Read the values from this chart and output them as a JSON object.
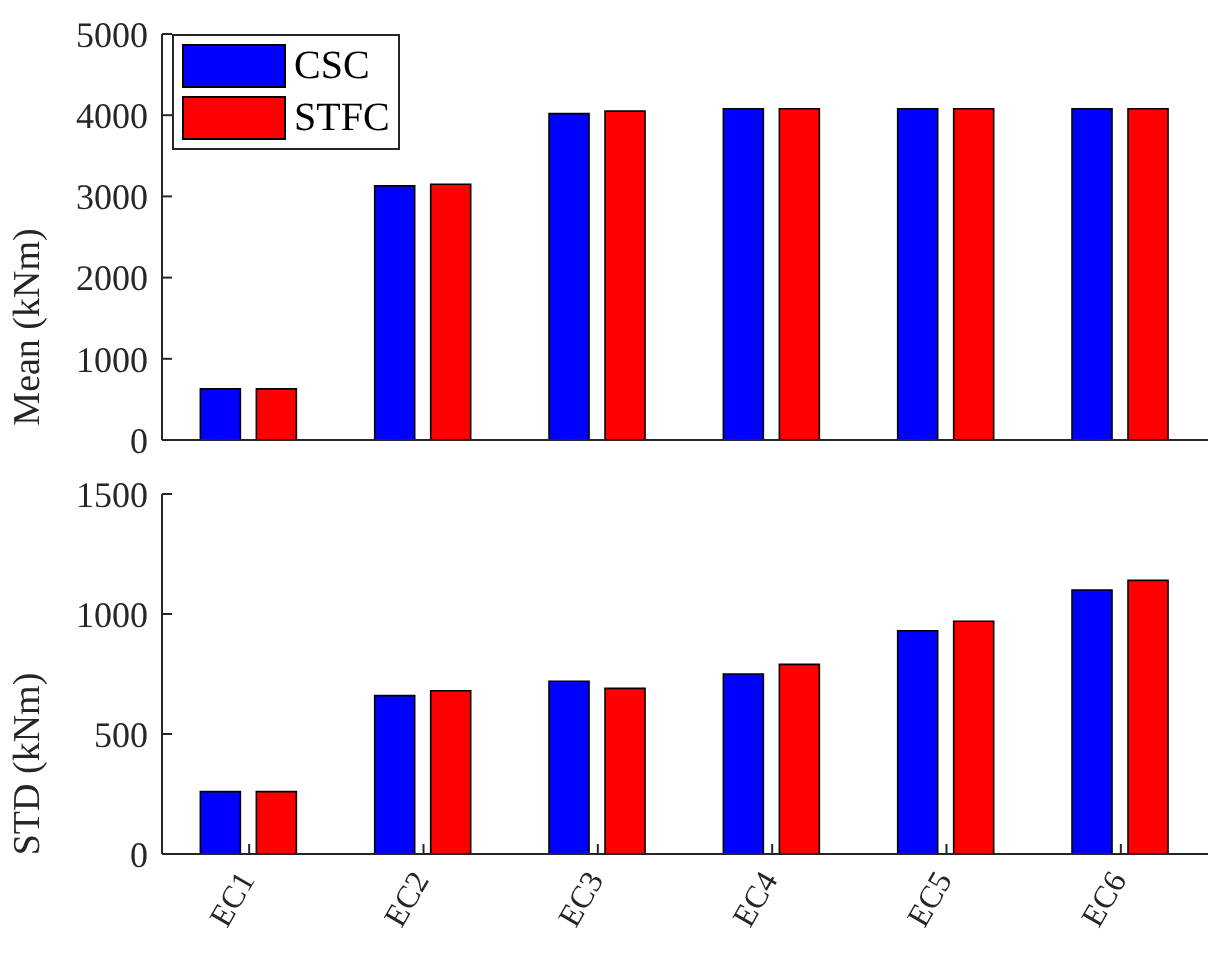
{
  "chart_data": [
    {
      "type": "bar",
      "categories": [
        null,
        null,
        null,
        null,
        null,
        null
      ],
      "ylabel": "Mean (kNm)",
      "ylim": [
        0,
        5000
      ],
      "yticks": [
        0,
        1000,
        2000,
        3000,
        4000,
        5000
      ],
      "tick_labels": "y",
      "legend": "top left",
      "grid": false,
      "series": [
        {
          "name": "CSC",
          "color": "#0000ff",
          "values": [
            630,
            3130,
            4020,
            4080,
            4080,
            4080
          ]
        },
        {
          "name": "STFC",
          "color": "#ff0000",
          "values": [
            630,
            3150,
            4050,
            4080,
            4080,
            4080
          ]
        }
      ]
    },
    {
      "type": "bar",
      "categories": [
        "EC1",
        "EC2",
        "EC3",
        "EC4",
        "EC5",
        "EC6"
      ],
      "ylabel": "STD (kNm)",
      "ylim": [
        0,
        1500
      ],
      "yticks": [
        0,
        500,
        1000,
        1500
      ],
      "grid": false,
      "series": [
        {
          "color": "#0000ff",
          "values": [
            260,
            660,
            720,
            750,
            930,
            1100
          ]
        },
        {
          "color": "#ff0000",
          "values": [
            260,
            680,
            690,
            790,
            970,
            1140
          ]
        }
      ]
    }
  ]
}
